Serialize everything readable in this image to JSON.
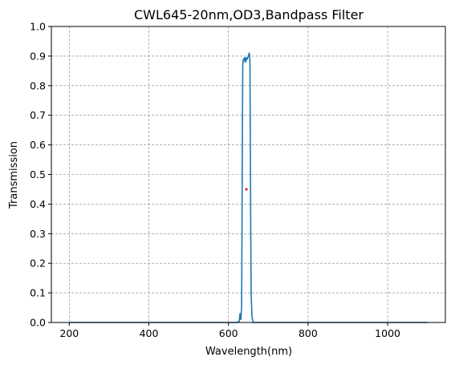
{
  "chart_data": {
    "type": "line",
    "title": "CWL645-20nm,OD3,Bandpass Filter",
    "xlabel": "Wavelength(nm)",
    "ylabel": "Transmission",
    "xlim": [
      155,
      1145
    ],
    "ylim": [
      0,
      1.0
    ],
    "x_ticks": [
      200,
      400,
      600,
      800,
      1000
    ],
    "y_ticks": [
      0.0,
      0.1,
      0.2,
      0.3,
      0.4,
      0.5,
      0.6,
      0.7,
      0.8,
      0.9,
      1.0
    ],
    "grid": true,
    "series": [
      {
        "color": "#1f77b4",
        "points": [
          [
            200,
            0.0
          ],
          [
            620,
            0.0
          ],
          [
            627,
            0.003
          ],
          [
            629,
            0.03
          ],
          [
            631,
            0.01
          ],
          [
            633,
            0.05
          ],
          [
            634,
            0.3
          ],
          [
            635,
            0.65
          ],
          [
            636,
            0.87
          ],
          [
            637,
            0.885
          ],
          [
            638,
            0.89
          ],
          [
            640,
            0.893
          ],
          [
            641,
            0.882
          ],
          [
            642,
            0.895
          ],
          [
            643,
            0.88
          ],
          [
            644,
            0.892
          ],
          [
            645,
            0.887
          ],
          [
            646,
            0.894
          ],
          [
            647,
            0.889
          ],
          [
            648,
            0.893
          ],
          [
            650,
            0.9
          ],
          [
            651,
            0.905
          ],
          [
            652,
            0.91
          ],
          [
            653,
            0.905
          ],
          [
            654,
            0.88
          ],
          [
            655,
            0.6
          ],
          [
            656,
            0.3
          ],
          [
            657,
            0.1
          ],
          [
            659,
            0.02
          ],
          [
            662,
            0.0
          ],
          [
            1100,
            0.0
          ]
        ]
      }
    ],
    "marker": {
      "x": 645,
      "y": 0.45,
      "color": "#d62728"
    }
  }
}
